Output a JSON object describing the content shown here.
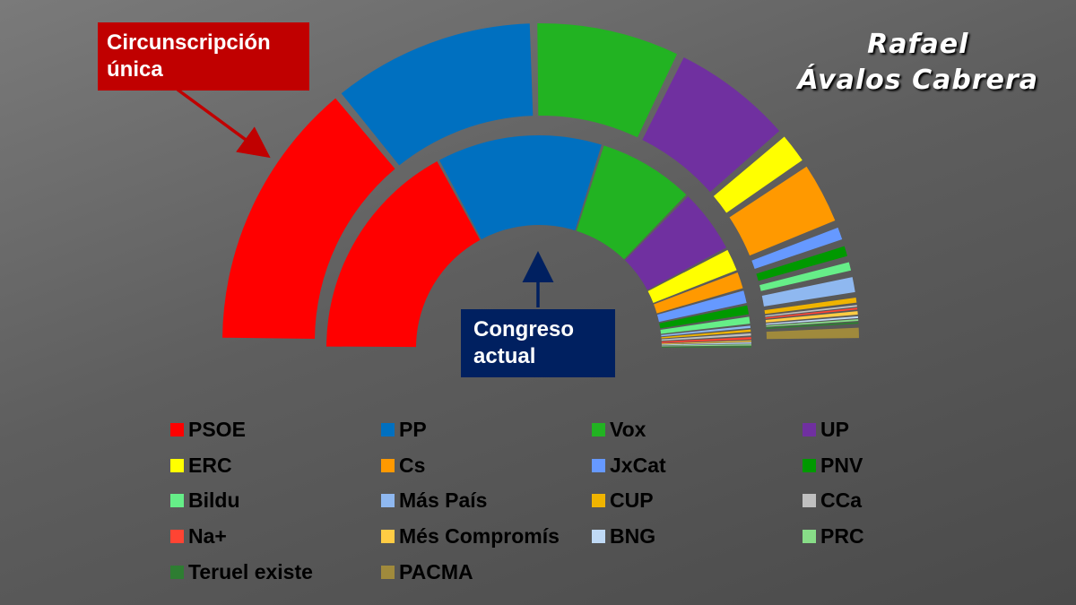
{
  "author": "Rafael\nÁvalos Cabrera",
  "callouts": {
    "single_constituency": "Circunscripción\núnica",
    "current_congress": "Congreso\nactual"
  },
  "chart_data": {
    "type": "pie",
    "subtype": "nested-half-donut (parliament)",
    "rings": [
      {
        "name": "Circunscripción única",
        "ring": "outer",
        "values": [
          {
            "party": "PSOE",
            "seats": 98
          },
          {
            "party": "PP",
            "seats": 74
          },
          {
            "party": "Vox",
            "seats": 53
          },
          {
            "party": "UP",
            "seats": 45
          },
          {
            "party": "ERC",
            "seats": 13
          },
          {
            "party": "Cs",
            "seats": 24
          },
          {
            "party": "JxCat",
            "seats": 7
          },
          {
            "party": "PNV",
            "seats": 6
          },
          {
            "party": "Bildu",
            "seats": 5
          },
          {
            "party": "Más País",
            "seats": 8
          },
          {
            "party": "CUP",
            "seats": 3
          },
          {
            "party": "CCa",
            "seats": 1
          },
          {
            "party": "Na+",
            "seats": 1
          },
          {
            "party": "Més Compromís",
            "seats": 2
          },
          {
            "party": "BNG",
            "seats": 1
          },
          {
            "party": "PRC",
            "seats": 1
          },
          {
            "party": "Teruel existe",
            "seats": 1
          },
          {
            "party": "PACMA",
            "seats": 6
          }
        ]
      },
      {
        "name": "Congreso actual",
        "ring": "inner",
        "values": [
          {
            "party": "PSOE",
            "seats": 120
          },
          {
            "party": "PP",
            "seats": 89
          },
          {
            "party": "Vox",
            "seats": 52
          },
          {
            "party": "UP",
            "seats": 35
          },
          {
            "party": "ERC",
            "seats": 13
          },
          {
            "party": "Cs",
            "seats": 10
          },
          {
            "party": "JxCat",
            "seats": 8
          },
          {
            "party": "PNV",
            "seats": 6
          },
          {
            "party": "Bildu",
            "seats": 5
          },
          {
            "party": "Más País",
            "seats": 2
          },
          {
            "party": "CUP",
            "seats": 2
          },
          {
            "party": "CCa",
            "seats": 2
          },
          {
            "party": "Na+",
            "seats": 2
          },
          {
            "party": "Més Compromís",
            "seats": 1
          },
          {
            "party": "BNG",
            "seats": 1
          },
          {
            "party": "PRC",
            "seats": 1
          },
          {
            "party": "Teruel existe",
            "seats": 1
          },
          {
            "party": "PACMA",
            "seats": 0
          }
        ]
      }
    ],
    "legend": [
      {
        "label": "PSOE",
        "color": "#ff0000"
      },
      {
        "label": "PP",
        "color": "#0070c0"
      },
      {
        "label": "Vox",
        "color": "#22b322"
      },
      {
        "label": "UP",
        "color": "#7030a0"
      },
      {
        "label": "ERC",
        "color": "#ffff00"
      },
      {
        "label": "Cs",
        "color": "#ff9900"
      },
      {
        "label": "JxCat",
        "color": "#6699ff"
      },
      {
        "label": "PNV",
        "color": "#009900"
      },
      {
        "label": "Bildu",
        "color": "#66ee88"
      },
      {
        "label": "Más País",
        "color": "#8fb8f0"
      },
      {
        "label": "CUP",
        "color": "#f0b400"
      },
      {
        "label": "CCa",
        "color": "#c0c0c0"
      },
      {
        "label": "Na+",
        "color": "#ff4433"
      },
      {
        "label": "Més Compromís",
        "color": "#ffcc44"
      },
      {
        "label": "BNG",
        "color": "#bfd9f5"
      },
      {
        "label": "PRC",
        "color": "#88dd88"
      },
      {
        "label": "Teruel existe",
        "color": "#2e7d32"
      },
      {
        "label": "PACMA",
        "color": "#a08a3c"
      }
    ],
    "legend_position": "bottom",
    "callout_color_single": "#c00000",
    "callout_color_current": "#002060"
  }
}
